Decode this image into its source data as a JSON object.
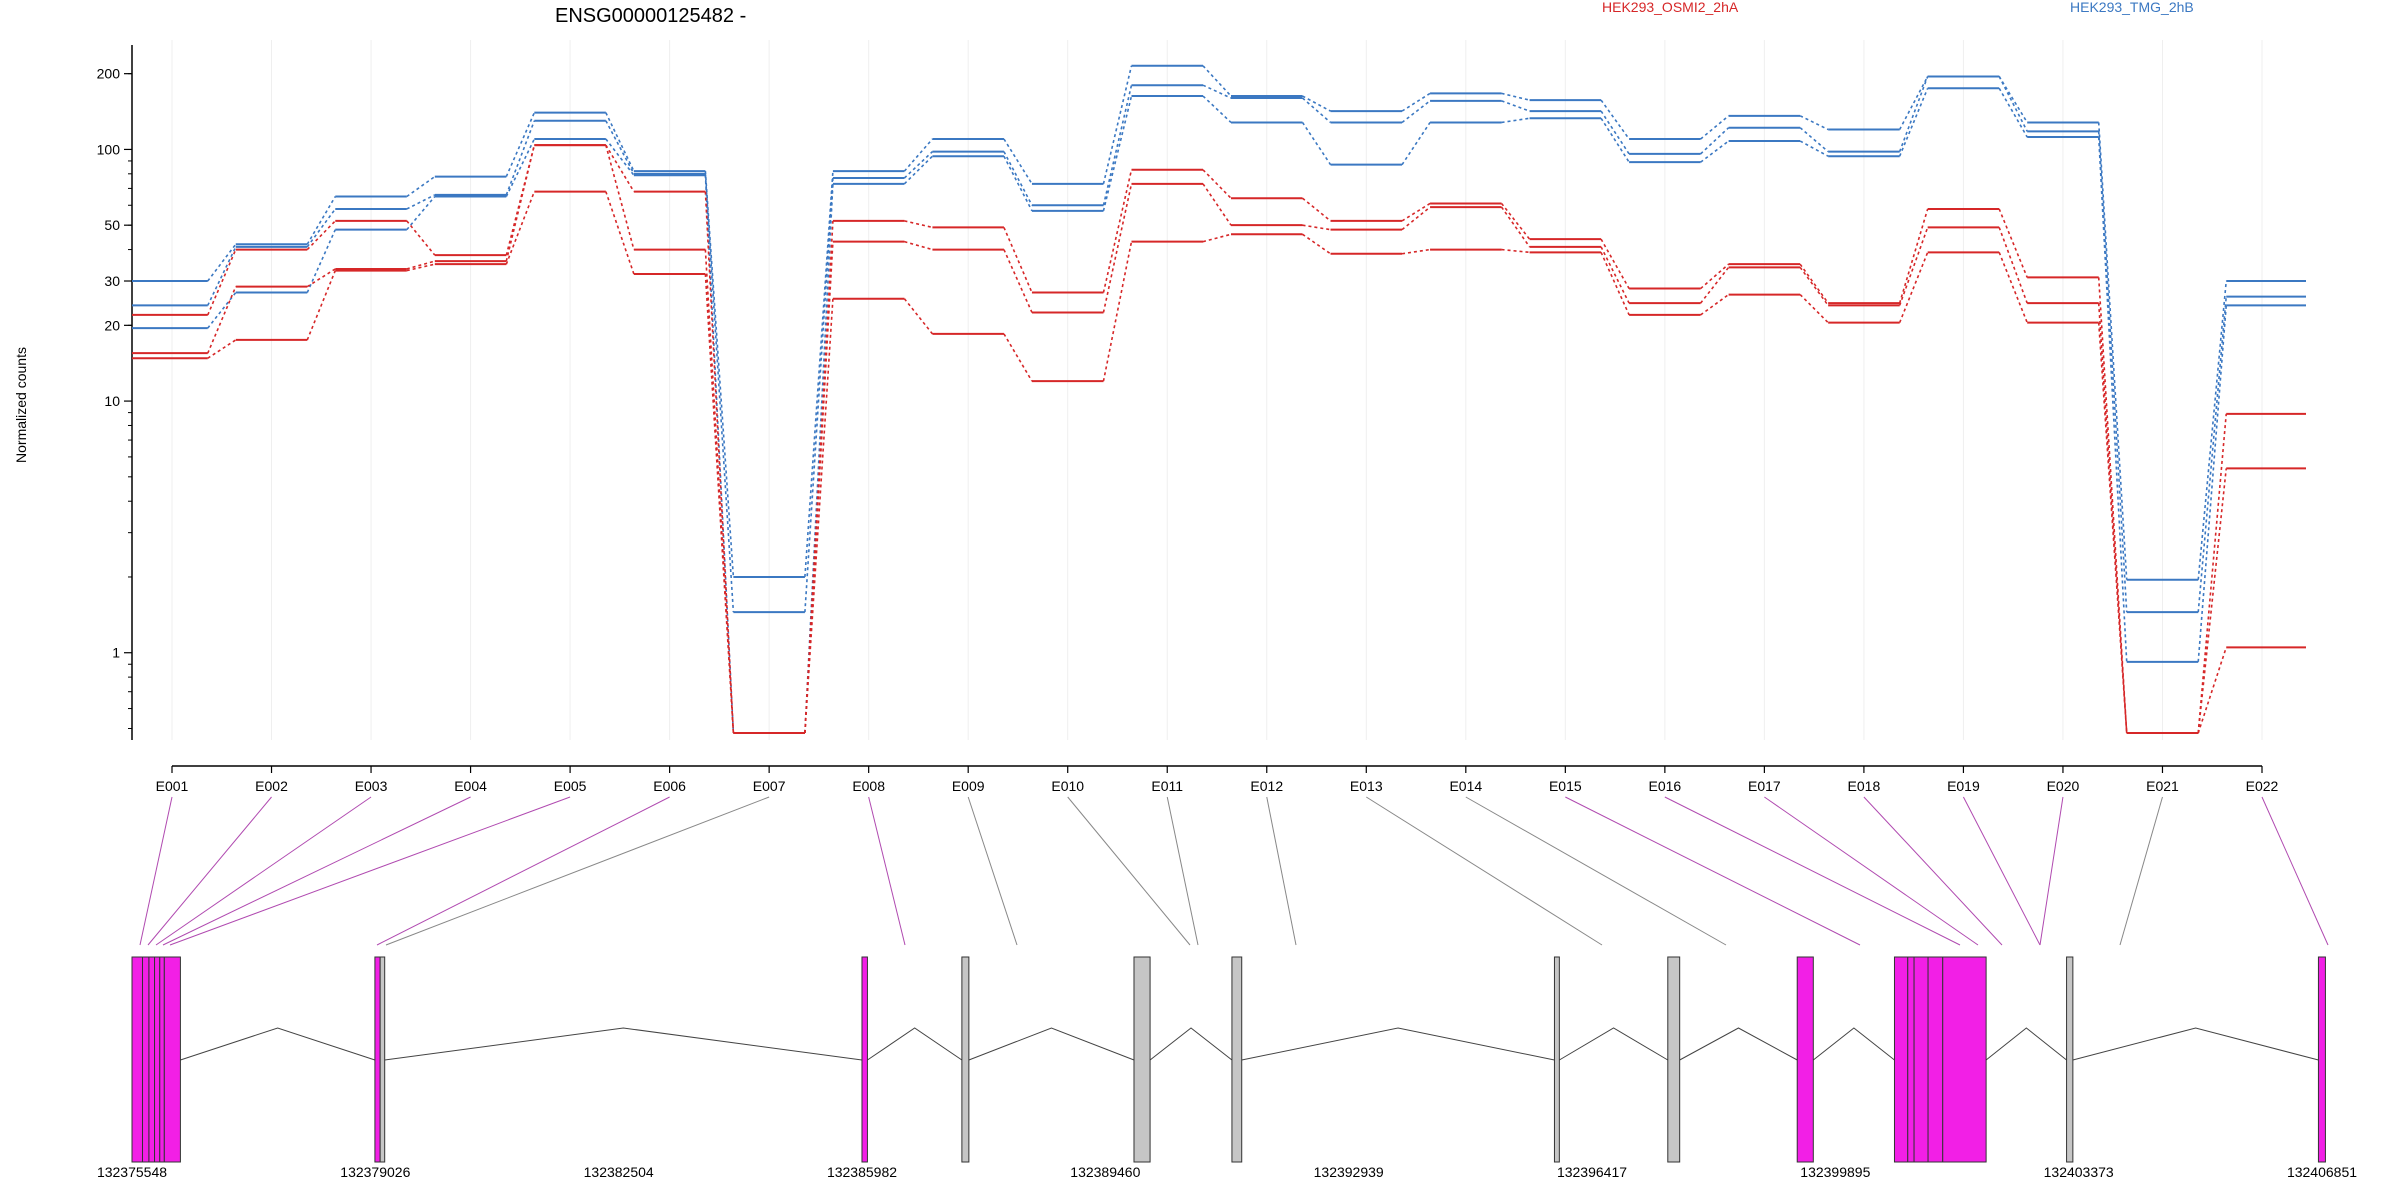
{
  "chart_data": {
    "type": "line",
    "title": "ENSG00000125482 -",
    "ylabel": "Normalized counts",
    "xlabel": "",
    "y_scale": "log",
    "ylim": [
      0.45,
      260
    ],
    "y_ticks": [
      1,
      10,
      20,
      30,
      50,
      100,
      200
    ],
    "legend": [
      {
        "name": "HEK293_OSMI2_2hA",
        "color": "#d62728"
      },
      {
        "name": "HEK293_TMG_2hB",
        "color": "#3b78c2"
      }
    ],
    "exons": [
      "E001",
      "E002",
      "E003",
      "E004",
      "E005",
      "E006",
      "E007",
      "E008",
      "E009",
      "E010",
      "E011",
      "E012",
      "E013",
      "E014",
      "E015",
      "E016",
      "E017",
      "E018",
      "E019",
      "E020",
      "E021",
      "E022"
    ],
    "series": [
      {
        "group": "HEK293_TMG_2hB",
        "color": "#3b78c2",
        "values": [
          30,
          42,
          65,
          78,
          140,
          82,
          2.0,
          82,
          110,
          73,
          215,
          163,
          142,
          167,
          157,
          110,
          136,
          120,
          195,
          128,
          1.95,
          30
        ]
      },
      {
        "group": "HEK293_TMG_2hB",
        "color": "#3b78c2",
        "values": [
          24,
          41,
          58,
          66,
          130,
          80,
          1.45,
          77,
          98,
          60,
          180,
          160,
          128,
          156,
          142,
          96,
          122,
          98,
          195,
          118,
          1.45,
          26
        ]
      },
      {
        "group": "HEK293_TMG_2hB",
        "color": "#3b78c2",
        "values": [
          19.5,
          27,
          48,
          65,
          110,
          79,
          0.48,
          73,
          94,
          57,
          163,
          128,
          87,
          128,
          133,
          89,
          108,
          94,
          175,
          112,
          0.92,
          24
        ]
      },
      {
        "group": "HEK293_OSMI2_2hA",
        "color": "#d62728",
        "values": [
          22,
          40,
          52,
          38,
          104,
          68,
          0.48,
          52,
          49,
          27,
          83,
          64,
          52,
          61,
          44,
          28,
          35,
          24.5,
          58,
          31,
          0.48,
          8.9
        ]
      },
      {
        "group": "HEK293_OSMI2_2hA",
        "color": "#d62728",
        "values": [
          15.5,
          28.5,
          33.5,
          36,
          104,
          40,
          0.48,
          43,
          40,
          22.5,
          73,
          50,
          48,
          59,
          41,
          24.5,
          34,
          24,
          49,
          24.5,
          0.48,
          5.4
        ]
      },
      {
        "group": "HEK293_OSMI2_2hA",
        "color": "#d62728",
        "values": [
          14.8,
          17.5,
          33,
          35,
          68,
          32,
          0.48,
          25.5,
          18.5,
          12,
          43,
          46,
          38.5,
          40,
          39,
          22,
          26.5,
          20.5,
          39,
          20.5,
          0.48,
          1.05
        ]
      }
    ]
  },
  "gene_model": {
    "coordinates": [
      "132375548",
      "132379026",
      "132382504",
      "132385982",
      "132389460",
      "132392939",
      "132396417",
      "132399895",
      "132403373",
      "132406851"
    ],
    "colors": {
      "significant": "#f21fe6",
      "not_significant": "#c6c6c6",
      "line_significant": "#b04ab0",
      "line_not_significant": "#888888"
    },
    "exon_significance": [
      true,
      true,
      true,
      true,
      true,
      true,
      false,
      true,
      false,
      false,
      false,
      false,
      false,
      false,
      true,
      true,
      true,
      true,
      true,
      true,
      false,
      true
    ]
  }
}
